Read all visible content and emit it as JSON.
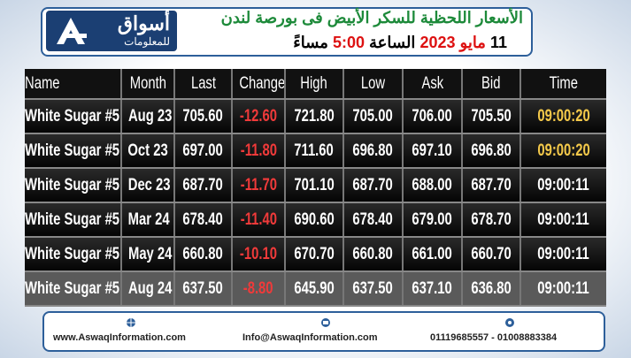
{
  "header": {
    "logo": {
      "name": "أسواق",
      "subtitle": "للمعلومات"
    },
    "title": "الأسعار اللحظية للسكر الأبيض فى بورصة لندن",
    "date_day": "11",
    "date_month": "مايو",
    "date_year": "2023",
    "time_label": "الساعة",
    "time": "5:00",
    "time_suffix": "مساءً"
  },
  "table": {
    "columns": [
      "Name",
      "Month",
      "Last",
      "Change",
      "High",
      "Low",
      "Ask",
      "Bid",
      "Time"
    ],
    "rows": [
      [
        "White Sugar #5",
        "Aug 23",
        "705.60",
        "-12.60",
        "721.80",
        "705.00",
        "706.00",
        "705.50",
        "09:00:20"
      ],
      [
        "White Sugar #5",
        "Oct 23",
        "697.00",
        "-11.80",
        "711.60",
        "696.80",
        "697.10",
        "696.80",
        "09:00:20"
      ],
      [
        "White Sugar #5",
        "Dec 23",
        "687.70",
        "-11.70",
        "701.10",
        "687.70",
        "688.00",
        "687.70",
        "09:00:11"
      ],
      [
        "White Sugar #5",
        "Mar 24",
        "678.40",
        "-11.40",
        "690.60",
        "678.40",
        "679.00",
        "678.70",
        "09:00:11"
      ],
      [
        "White Sugar #5",
        "May 24",
        "660.80",
        "-10.10",
        "670.70",
        "660.80",
        "661.00",
        "660.70",
        "09:00:11"
      ],
      [
        "White Sugar #5",
        "Aug 24",
        "637.50",
        "-8.80",
        "645.90",
        "637.50",
        "637.10",
        "636.80",
        "09:00:11"
      ]
    ]
  },
  "footer": {
    "website": "www.AswaqInformation.com",
    "email": "Info@AswaqInformation.com",
    "phones": "01119685557 - 01008883384"
  }
}
